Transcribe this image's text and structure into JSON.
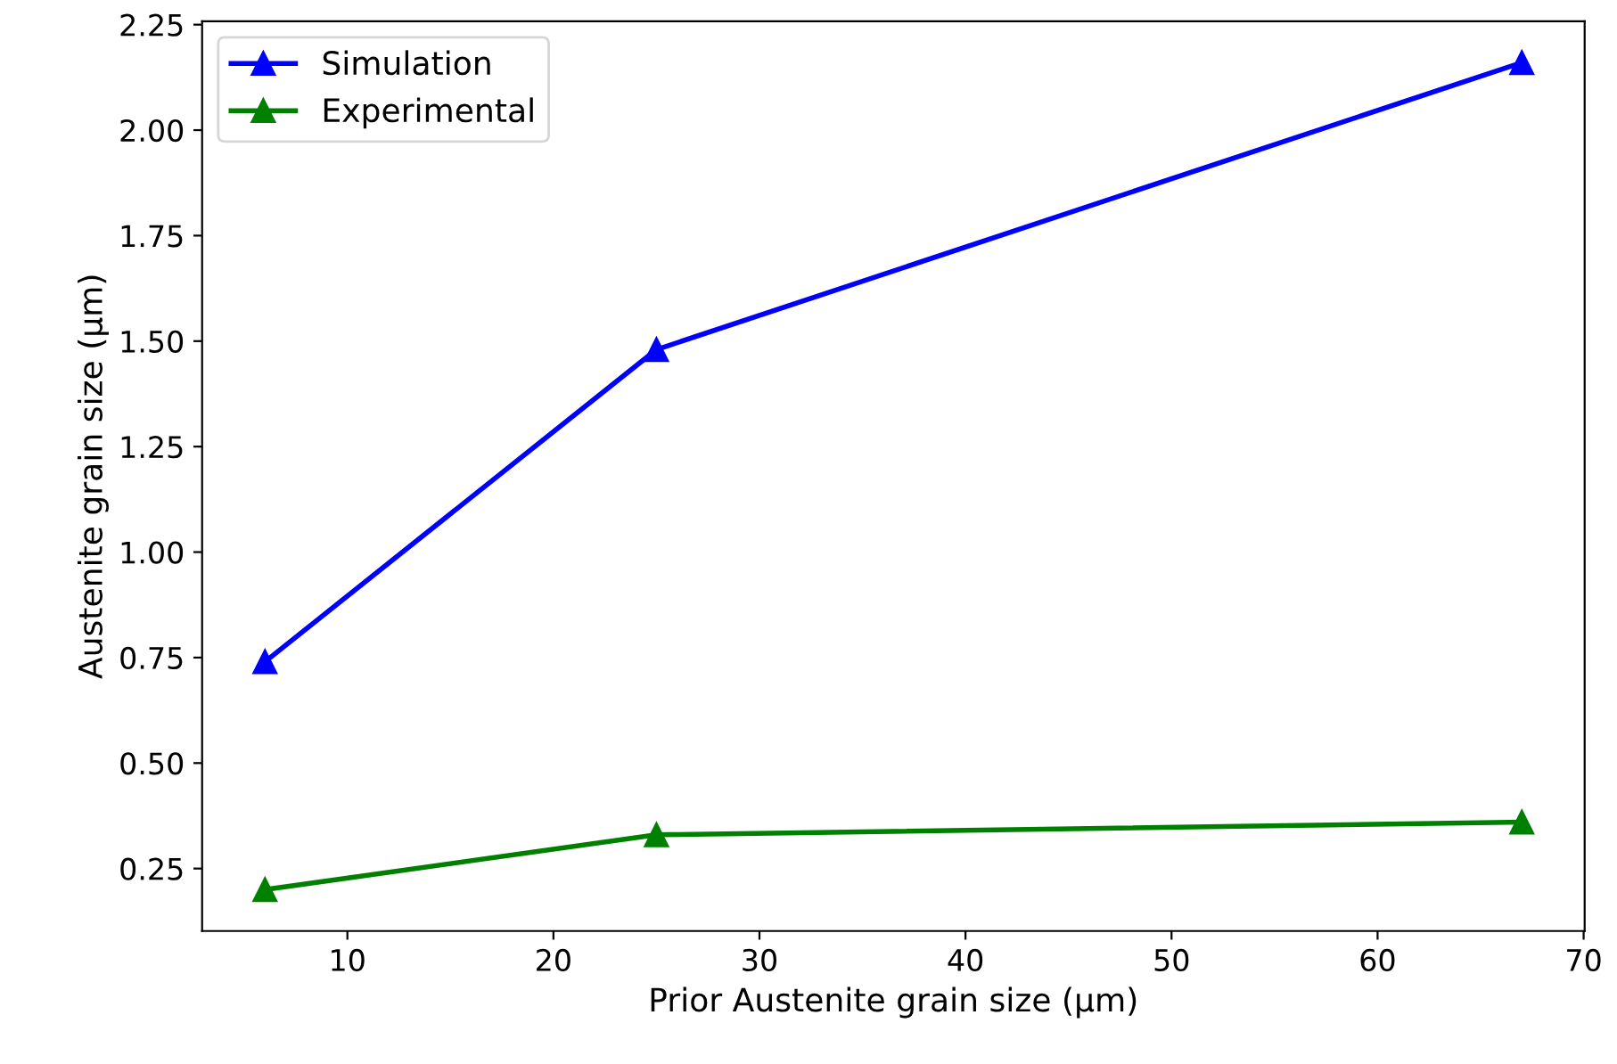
{
  "chart_data": {
    "type": "line",
    "xlabel": "Prior Austenite grain size (μm)",
    "ylabel": "Austenite grain size (μm)",
    "x": [
      6,
      25,
      67
    ],
    "series": [
      {
        "name": "Simulation",
        "color": "#0000ff",
        "values": [
          0.74,
          1.48,
          2.16
        ]
      },
      {
        "name": "Experimental",
        "color": "#008000",
        "values": [
          0.2,
          0.33,
          0.36
        ]
      }
    ],
    "xlim": [
      2.95,
      70.05
    ],
    "xticks": [
      10,
      20,
      30,
      40,
      50,
      60,
      70
    ],
    "ylim": [
      0.102,
      2.258
    ],
    "yticks": [
      0.25,
      {
        "value": 0.5,
        "label": "0.50"
      },
      0.75,
      {
        "value": 1.0,
        "label": "1.00"
      },
      1.25,
      {
        "value": 1.5,
        "label": "1.50"
      },
      1.75,
      {
        "value": 2.0,
        "label": "2.00"
      },
      2.25
    ],
    "grid": false,
    "legend": "top left",
    "marker": "triangle",
    "line_style": "solid"
  }
}
